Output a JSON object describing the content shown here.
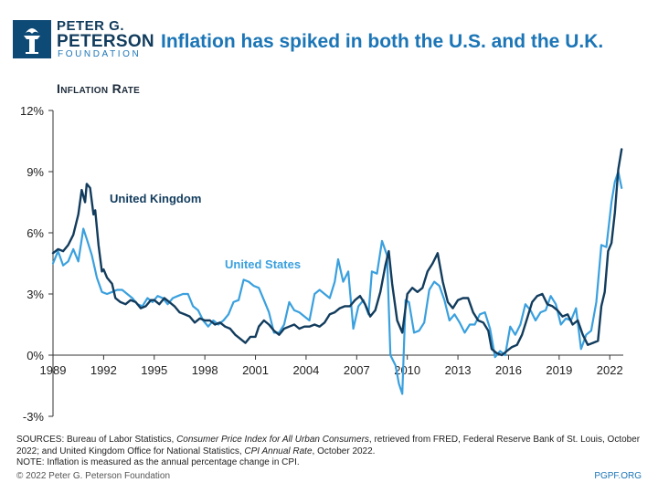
{
  "header": {
    "logo_line1": "PETER G.",
    "logo_line2": "PETERSON",
    "logo_line3": "FOUNDATION",
    "logo_icon": "torch-icon",
    "title": "Inflation has spiked in both the U.S. and the U.K."
  },
  "footer": {
    "sources_prefix": "SOURCES: Bureau of Labor Statistics, ",
    "sources_cpi": "Consumer Price Index for All Urban Consumers",
    "sources_mid": ", retrieved from FRED, Federal Reserve Bank of St. Louis, October 2022; and United Kingdom Office for National Statistics, ",
    "sources_cpi_annual": "CPI Annual Rate",
    "sources_end": ", October 2022.",
    "note": "NOTE: Inflation is measured as the annual percentage change in CPI.",
    "copyright": "© 2022 Peter G. Peterson Foundation",
    "site": "PGPF.ORG"
  },
  "colors": {
    "uk": "#123c5d",
    "us": "#3aa0de",
    "title": "#1b75b6",
    "axis": "#333333"
  },
  "chart_data": {
    "type": "line",
    "title": "Inflation has spiked in both the U.S. and the U.K.",
    "ylabel": "Inflation Rate",
    "xlabel": "",
    "xlim": [
      1989,
      2022.8
    ],
    "ylim": [
      -3,
      12
    ],
    "xticks": [
      1989,
      1992,
      1995,
      1998,
      2001,
      2004,
      2007,
      2010,
      2013,
      2016,
      2019,
      2022
    ],
    "yticks": [
      -3,
      0,
      3,
      6,
      9,
      12
    ],
    "ytick_labels": [
      "-3%",
      "0%",
      "3%",
      "6%",
      "9%",
      "12%"
    ],
    "grid": false,
    "series": [
      {
        "name": "United Kingdom",
        "label": "United Kingdom",
        "x": [
          1989.0,
          1989.3,
          1989.6,
          1989.9,
          1990.2,
          1990.5,
          1990.7,
          1990.9,
          1991.0,
          1991.2,
          1991.4,
          1991.5,
          1991.7,
          1991.9,
          1992.0,
          1992.2,
          1992.4,
          1992.5,
          1992.7,
          1993.0,
          1993.3,
          1993.6,
          1993.9,
          1994.2,
          1994.5,
          1994.8,
          1995.0,
          1995.3,
          1995.6,
          1995.9,
          1996.2,
          1996.5,
          1996.8,
          1997.1,
          1997.4,
          1997.7,
          1998.0,
          1998.3,
          1998.6,
          1998.9,
          1999.2,
          1999.5,
          1999.8,
          2000.1,
          2000.4,
          2000.7,
          2001.0,
          2001.2,
          2001.5,
          2001.8,
          2002.1,
          2002.4,
          2002.7,
          2003.0,
          2003.3,
          2003.6,
          2003.9,
          2004.2,
          2004.5,
          2004.8,
          2005.1,
          2005.4,
          2005.7,
          2006.0,
          2006.3,
          2006.6,
          2006.9,
          2007.2,
          2007.5,
          2007.8,
          2008.1,
          2008.4,
          2008.7,
          2008.9,
          2009.1,
          2009.4,
          2009.7,
          2010.0,
          2010.3,
          2010.6,
          2010.9,
          2011.2,
          2011.5,
          2011.8,
          2012.1,
          2012.4,
          2012.7,
          2013.0,
          2013.3,
          2013.6,
          2013.9,
          2014.2,
          2014.5,
          2014.8,
          2015.0,
          2015.3,
          2015.6,
          2015.9,
          2016.2,
          2016.5,
          2016.8,
          2017.1,
          2017.4,
          2017.7,
          2018.0,
          2018.3,
          2018.6,
          2018.9,
          2019.2,
          2019.5,
          2019.8,
          2020.1,
          2020.4,
          2020.7,
          2021.0,
          2021.3,
          2021.5,
          2021.7,
          2021.9,
          2022.1,
          2022.3,
          2022.5,
          2022.7
        ],
        "values": [
          5.0,
          5.2,
          5.1,
          5.4,
          5.9,
          6.9,
          8.1,
          7.5,
          8.4,
          8.2,
          6.9,
          7.1,
          5.4,
          4.1,
          4.2,
          3.8,
          3.6,
          3.5,
          2.8,
          2.6,
          2.5,
          2.7,
          2.6,
          2.3,
          2.4,
          2.7,
          2.7,
          2.5,
          2.8,
          2.6,
          2.4,
          2.1,
          2.0,
          1.9,
          1.6,
          1.8,
          1.7,
          1.7,
          1.5,
          1.6,
          1.4,
          1.3,
          1.0,
          0.8,
          0.6,
          0.9,
          0.9,
          1.4,
          1.7,
          1.5,
          1.2,
          1.0,
          1.3,
          1.4,
          1.5,
          1.3,
          1.4,
          1.4,
          1.5,
          1.4,
          1.6,
          2.0,
          2.1,
          2.3,
          2.4,
          2.4,
          2.7,
          2.9,
          2.5,
          1.9,
          2.2,
          3.1,
          4.4,
          5.1,
          3.5,
          1.7,
          1.1,
          3.0,
          3.3,
          3.1,
          3.3,
          4.1,
          4.5,
          5.0,
          3.6,
          2.6,
          2.3,
          2.7,
          2.8,
          2.8,
          2.1,
          1.7,
          1.6,
          1.2,
          0.3,
          0.1,
          0.0,
          0.2,
          0.4,
          0.5,
          1.0,
          1.8,
          2.6,
          2.9,
          3.0,
          2.5,
          2.4,
          2.2,
          1.9,
          2.0,
          1.5,
          1.7,
          1.0,
          0.5,
          0.6,
          0.7,
          2.4,
          3.1,
          5.1,
          5.5,
          7.0,
          9.1,
          10.1
        ]
      },
      {
        "name": "United States",
        "label": "United States",
        "x": [
          1989.0,
          1989.3,
          1989.6,
          1989.9,
          1990.2,
          1990.5,
          1990.8,
          1991.0,
          1991.3,
          1991.6,
          1991.9,
          1992.2,
          1992.5,
          1992.8,
          1993.1,
          1993.4,
          1993.7,
          1994.0,
          1994.3,
          1994.6,
          1994.9,
          1995.2,
          1995.5,
          1995.8,
          1996.1,
          1996.4,
          1996.7,
          1997.0,
          1997.3,
          1997.6,
          1997.9,
          1998.2,
          1998.5,
          1998.8,
          1999.1,
          1999.4,
          1999.7,
          2000.0,
          2000.3,
          2000.6,
          2000.9,
          2001.2,
          2001.5,
          2001.8,
          2002.1,
          2002.4,
          2002.7,
          2003.0,
          2003.3,
          2003.6,
          2003.9,
          2004.2,
          2004.5,
          2004.8,
          2005.1,
          2005.4,
          2005.7,
          2005.9,
          2006.2,
          2006.5,
          2006.8,
          2007.1,
          2007.4,
          2007.7,
          2007.9,
          2008.2,
          2008.5,
          2008.8,
          2009.0,
          2009.3,
          2009.5,
          2009.7,
          2009.9,
          2010.1,
          2010.4,
          2010.7,
          2011.0,
          2011.3,
          2011.6,
          2011.9,
          2012.2,
          2012.5,
          2012.8,
          2013.1,
          2013.4,
          2013.7,
          2014.0,
          2014.3,
          2014.6,
          2014.9,
          2015.2,
          2015.5,
          2015.8,
          2016.1,
          2016.4,
          2016.7,
          2017.0,
          2017.3,
          2017.6,
          2017.9,
          2018.2,
          2018.5,
          2018.8,
          2019.1,
          2019.4,
          2019.7,
          2020.0,
          2020.3,
          2020.6,
          2020.9,
          2021.2,
          2021.5,
          2021.8,
          2022.1,
          2022.3,
          2022.5,
          2022.7
        ],
        "values": [
          4.5,
          5.1,
          4.4,
          4.6,
          5.2,
          4.6,
          6.2,
          5.7,
          4.9,
          3.8,
          3.1,
          3.0,
          3.1,
          3.2,
          3.2,
          3.0,
          2.8,
          2.5,
          2.4,
          2.8,
          2.6,
          2.9,
          2.8,
          2.5,
          2.8,
          2.9,
          3.0,
          3.0,
          2.4,
          2.2,
          1.7,
          1.4,
          1.7,
          1.5,
          1.7,
          2.0,
          2.6,
          2.7,
          3.7,
          3.6,
          3.4,
          3.3,
          2.7,
          2.1,
          1.1,
          1.1,
          1.5,
          2.6,
          2.2,
          2.1,
          1.9,
          1.7,
          3.0,
          3.2,
          3.0,
          2.8,
          3.6,
          4.7,
          3.6,
          4.1,
          1.3,
          2.4,
          2.7,
          2.0,
          4.1,
          4.0,
          5.6,
          4.9,
          0.0,
          -0.5,
          -1.4,
          -1.9,
          2.7,
          2.6,
          1.1,
          1.2,
          1.6,
          3.2,
          3.6,
          3.4,
          2.7,
          1.7,
          2.0,
          1.6,
          1.1,
          1.5,
          1.5,
          2.0,
          2.1,
          1.3,
          -0.1,
          0.2,
          0.0,
          1.4,
          1.0,
          1.5,
          2.5,
          2.2,
          1.7,
          2.1,
          2.2,
          2.9,
          2.5,
          1.5,
          1.8,
          1.7,
          2.3,
          0.3,
          1.0,
          1.2,
          2.6,
          5.4,
          5.3,
          7.5,
          8.5,
          9.0,
          8.2
        ]
      }
    ]
  }
}
